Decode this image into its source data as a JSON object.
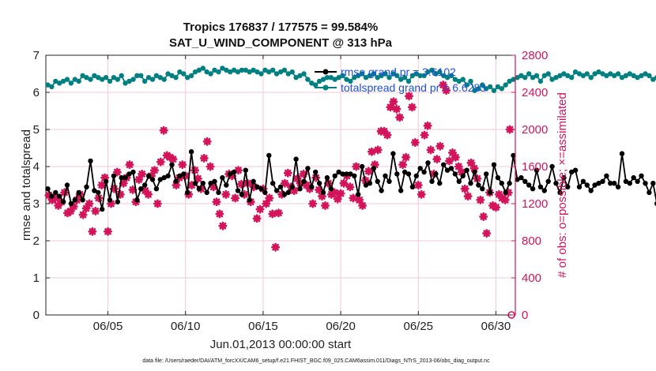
{
  "chart_data": {
    "type": "line",
    "title": "Tropics 176837 / 177575 = 99.584%",
    "subtitle": "SAT_U_WIND_COMPONENT @ 313 hPa",
    "xlabel": "Jun.01,2013 00:00:00 start",
    "ylabel": "rmse and totalspread",
    "y2label": "# of obs: o=possible; ×=assimilated",
    "footer": "data file: /Users/raeder/DAI/ATM_forcXX/CAM6_setup/f.e21.FHIST_BGC.f09_025.CAM6assim.011/Diags_NTrS_2013-06/obs_diag_output.nc",
    "xlim": [
      1,
      31.25
    ],
    "ylim": [
      0,
      7
    ],
    "y2lim": [
      0,
      2800
    ],
    "x_ticks": [
      5,
      10,
      15,
      20,
      25,
      30
    ],
    "x_tick_labels": [
      "06/05",
      "06/10",
      "06/15",
      "06/20",
      "06/25",
      "06/30"
    ],
    "y_ticks": [
      0,
      1,
      2,
      3,
      4,
      5,
      6,
      7
    ],
    "y_tick_labels": [
      "0",
      "1",
      "2",
      "3",
      "4",
      "5",
      "6",
      "7"
    ],
    "y2_ticks": [
      0,
      400,
      800,
      1200,
      1600,
      2000,
      2400,
      2800
    ],
    "y2_tick_labels": [
      "0",
      "400",
      "800",
      "1200",
      "1600",
      "2000",
      "2400",
      "2800"
    ],
    "grid": true,
    "legend_position": "top-right",
    "colors": {
      "rmse": "#000000",
      "spread": "#008080",
      "obs": "#d4145a",
      "legend_text": "#1e4fe0"
    },
    "x_start": 1.125,
    "x_step": 0.25,
    "series": [
      {
        "name": "rmse grand pr = 3.6102",
        "axis": "left",
        "values": [
          3.4,
          3.2,
          3.3,
          3.2,
          3.05,
          3.5,
          3.0,
          3.1,
          3.3,
          3.1,
          3.45,
          4.15,
          3.35,
          3.3,
          2.85,
          3.6,
          3.1,
          3.75,
          3.05,
          3.7,
          3.7,
          3.8,
          3.85,
          3.1,
          3.4,
          3.5,
          3.75,
          3.65,
          3.4,
          3.65,
          3.7,
          3.75,
          4.05,
          3.6,
          3.75,
          3.8,
          3.3,
          4.4,
          3.55,
          3.4,
          3.55,
          3.3,
          3.55,
          3.6,
          3.3,
          3.7,
          3.5,
          3.8,
          3.85,
          3.35,
          3.25,
          3.9,
          3.1,
          3.6,
          3.45,
          3.4,
          3.3,
          4.3,
          3.55,
          3.35,
          3.45,
          3.25,
          3.3,
          3.45,
          4.2,
          3.4,
          3.6,
          3.95,
          3.45,
          3.85,
          3.55,
          3.3,
          3.7,
          3.4,
          3.75,
          3.85,
          3.8,
          3.8,
          3.8,
          3.75,
          3.25,
          4.0,
          3.5,
          3.55,
          3.95,
          3.6,
          3.35,
          3.75,
          3.6,
          4.35,
          3.8,
          3.35,
          3.85,
          3.8,
          3.45,
          3.75,
          3.95,
          3.85,
          4.1,
          3.6,
          3.8,
          3.55,
          4.05,
          3.9,
          3.95,
          3.8,
          3.6,
          3.75,
          3.9,
          3.55,
          3.85,
          3.5,
          3.4,
          3.8,
          3.3,
          4.05,
          3.7,
          3.55,
          3.3,
          3.55,
          4.3,
          3.65,
          3.7,
          3.6,
          3.5,
          3.4,
          3.9,
          3.45,
          3.35,
          3.6,
          4.0,
          3.55,
          3.3,
          3.7,
          3.45,
          3.85,
          3.9,
          3.45,
          3.6,
          3.5,
          3.35,
          3.5,
          3.55,
          3.6,
          3.75,
          3.55,
          3.55,
          3.45,
          4.35,
          3.6,
          3.55,
          3.7,
          3.6,
          3.75,
          3.55,
          3.3,
          3.55,
          3.0,
          3.4,
          3.65,
          3.45,
          3.35,
          3.2,
          3.15,
          3.25,
          3.4,
          3.25,
          3.3,
          3.2,
          3.3
        ]
      },
      {
        "name": "totalspread grand pr = 6.6283",
        "axis": "left",
        "values": [
          6.2,
          6.15,
          6.3,
          6.25,
          6.3,
          6.35,
          6.25,
          6.35,
          6.3,
          6.45,
          6.4,
          6.35,
          6.45,
          6.4,
          6.35,
          6.4,
          6.3,
          6.4,
          6.35,
          6.45,
          6.25,
          6.3,
          6.35,
          6.45,
          6.45,
          6.3,
          6.4,
          6.35,
          6.45,
          6.4,
          6.35,
          6.5,
          6.45,
          6.4,
          6.55,
          6.5,
          6.4,
          6.45,
          6.55,
          6.6,
          6.65,
          6.55,
          6.5,
          6.6,
          6.55,
          6.65,
          6.6,
          6.55,
          6.6,
          6.55,
          6.6,
          6.6,
          6.55,
          6.6,
          6.55,
          6.5,
          6.6,
          6.55,
          6.6,
          6.5,
          6.55,
          6.6,
          6.5,
          6.55,
          6.4,
          6.45,
          6.5,
          6.35,
          6.25,
          6.2,
          6.3,
          6.35,
          6.4,
          6.4,
          6.35,
          6.4,
          6.45,
          6.35,
          6.3,
          6.4,
          6.45,
          6.5,
          6.4,
          6.45,
          6.5,
          6.4,
          6.45,
          6.5,
          6.4,
          6.5,
          6.45,
          6.35,
          6.4,
          6.3,
          6.45,
          6.5,
          6.45,
          6.45,
          6.55,
          6.6,
          6.5,
          6.55,
          6.45,
          6.4,
          6.45,
          6.35,
          6.3,
          6.35,
          6.2,
          6.3,
          6.05,
          6.1,
          6.2,
          6.1,
          6.15,
          6.05,
          6.15,
          6.1,
          6.2,
          6.3,
          6.35,
          6.4,
          6.45,
          6.4,
          6.5,
          6.4,
          6.45,
          6.3,
          6.45,
          6.5,
          6.35,
          6.4,
          6.45,
          6.5,
          6.45,
          6.4,
          6.55,
          6.5,
          6.45,
          6.5,
          6.4,
          6.5,
          6.55,
          6.5,
          6.45,
          6.5,
          6.45,
          6.5,
          6.4,
          6.45,
          6.5,
          6.45,
          6.4,
          6.45,
          6.5,
          6.45,
          6.35,
          6.4,
          6.45,
          6.4,
          6.35,
          6.35,
          6.3,
          6.25,
          6.35,
          6.3,
          6.35,
          6.3,
          6.35,
          6.45
        ]
      },
      {
        "name": "# of obs assimilated",
        "axis": "right",
        "marker": "star",
        "points": [
          [
            1.2,
            1290
          ],
          [
            1.4,
            1240
          ],
          [
            1.6,
            1260
          ],
          [
            1.8,
            1180
          ],
          [
            2.0,
            1220
          ],
          [
            2.2,
            1320
          ],
          [
            2.4,
            1100
          ],
          [
            2.6,
            1120
          ],
          [
            2.8,
            1170
          ],
          [
            3.0,
            1240
          ],
          [
            3.2,
            1300
          ],
          [
            3.4,
            1080
          ],
          [
            3.6,
            1150
          ],
          [
            3.8,
            1200
          ],
          [
            4.0,
            900
          ],
          [
            4.2,
            1120
          ],
          [
            4.4,
            1260
          ],
          [
            4.6,
            1400
          ],
          [
            4.8,
            1480
          ],
          [
            5.0,
            900
          ],
          [
            5.2,
            1200
          ],
          [
            5.4,
            1360
          ],
          [
            5.6,
            1540
          ],
          [
            5.8,
            1300
          ],
          [
            6.0,
            1420
          ],
          [
            6.2,
            1480
          ],
          [
            6.4,
            1620
          ],
          [
            6.6,
            1350
          ],
          [
            6.8,
            1220
          ],
          [
            7.0,
            1460
          ],
          [
            7.2,
            1520
          ],
          [
            7.4,
            1340
          ],
          [
            7.6,
            1300
          ],
          [
            7.8,
            1500
          ],
          [
            8.0,
            1560
          ],
          [
            8.2,
            1200
          ],
          [
            8.4,
            1650
          ],
          [
            8.6,
            1990
          ],
          [
            8.8,
            1720
          ],
          [
            9.0,
            1700
          ],
          [
            9.2,
            1680
          ],
          [
            9.4,
            1400
          ],
          [
            9.6,
            1480
          ],
          [
            9.8,
            1620
          ],
          [
            10.0,
            1500
          ],
          [
            10.2,
            1300
          ],
          [
            10.4,
            1400
          ],
          [
            10.6,
            1560
          ],
          [
            10.8,
            1470
          ],
          [
            11.0,
            1360
          ],
          [
            11.2,
            1690
          ],
          [
            11.4,
            1870
          ],
          [
            11.6,
            1600
          ],
          [
            11.8,
            1380
          ],
          [
            12.0,
            1220
          ],
          [
            12.2,
            1090
          ],
          [
            12.4,
            960
          ],
          [
            12.6,
            1300
          ],
          [
            12.8,
            1520
          ],
          [
            13.0,
            1500
          ],
          [
            13.2,
            1260
          ],
          [
            13.4,
            1560
          ],
          [
            13.6,
            1410
          ],
          [
            13.8,
            1300
          ],
          [
            14.0,
            1420
          ],
          [
            14.2,
            1220
          ],
          [
            14.4,
            1380
          ],
          [
            14.6,
            1040
          ],
          [
            14.8,
            1140
          ],
          [
            15.0,
            1360
          ],
          [
            15.2,
            1200
          ],
          [
            15.4,
            1260
          ],
          [
            15.6,
            1090
          ],
          [
            15.8,
            730
          ],
          [
            16.0,
            1100
          ],
          [
            16.2,
            1300
          ],
          [
            16.4,
            1420
          ],
          [
            16.6,
            1530
          ],
          [
            16.8,
            1380
          ],
          [
            17.0,
            1340
          ],
          [
            17.2,
            1470
          ],
          [
            17.4,
            1420
          ],
          [
            17.6,
            1520
          ],
          [
            17.8,
            1400
          ],
          [
            18.0,
            1360
          ],
          [
            18.2,
            1200
          ],
          [
            18.4,
            1480
          ],
          [
            18.6,
            1350
          ],
          [
            18.8,
            1280
          ],
          [
            19.0,
            1180
          ],
          [
            19.2,
            1420
          ],
          [
            19.4,
            1300
          ],
          [
            19.6,
            1320
          ],
          [
            19.8,
            1250
          ],
          [
            20.0,
            1310
          ],
          [
            20.2,
            1420
          ],
          [
            20.4,
            1500
          ],
          [
            20.6,
            1380
          ],
          [
            20.8,
            1260
          ],
          [
            21.0,
            1600
          ],
          [
            21.2,
            1240
          ],
          [
            21.4,
            1180
          ],
          [
            21.6,
            1450
          ],
          [
            21.8,
            1550
          ],
          [
            22.0,
            1760
          ],
          [
            22.2,
            1620
          ],
          [
            22.4,
            1780
          ],
          [
            22.6,
            1980
          ],
          [
            22.8,
            1980
          ],
          [
            23.0,
            1940
          ],
          [
            23.2,
            2240
          ],
          [
            23.4,
            2300
          ],
          [
            23.6,
            2220
          ],
          [
            23.8,
            2130
          ],
          [
            24.0,
            1620
          ],
          [
            24.2,
            1700
          ],
          [
            24.4,
            2360
          ],
          [
            24.6,
            2240
          ],
          [
            24.8,
            1860
          ],
          [
            25.0,
            1400
          ],
          [
            25.2,
            1300
          ],
          [
            25.4,
            1940
          ],
          [
            25.6,
            2040
          ],
          [
            25.8,
            1780
          ],
          [
            26.0,
            1520
          ],
          [
            26.2,
            1680
          ],
          [
            26.4,
            1820
          ],
          [
            26.6,
            2480
          ],
          [
            26.8,
            2420
          ],
          [
            27.0,
            1660
          ],
          [
            27.2,
            1750
          ],
          [
            27.4,
            1700
          ],
          [
            27.6,
            1600
          ],
          [
            27.8,
            1540
          ],
          [
            28.0,
            1360
          ],
          [
            28.2,
            1280
          ],
          [
            28.4,
            1640
          ],
          [
            28.6,
            1580
          ],
          [
            28.8,
            1470
          ],
          [
            29.0,
            1240
          ],
          [
            29.2,
            1060
          ],
          [
            29.4,
            880
          ],
          [
            29.6,
            1320
          ],
          [
            29.8,
            1180
          ],
          [
            30.0,
            1160
          ],
          [
            30.2,
            1300
          ],
          [
            30.4,
            1260
          ],
          [
            30.6,
            1240
          ],
          [
            30.8,
            1320
          ],
          [
            30.9,
            2000
          ]
        ]
      },
      {
        "name": "# of obs possible (last point)",
        "axis": "right",
        "marker": "circle",
        "points": [
          [
            31.0,
            0
          ]
        ]
      }
    ]
  }
}
